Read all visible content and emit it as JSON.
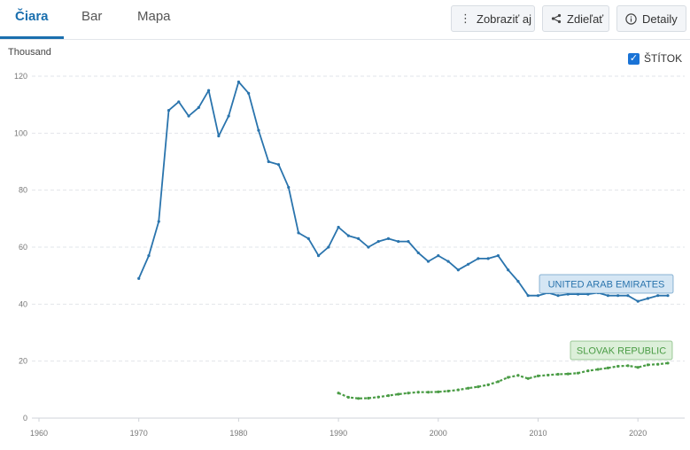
{
  "tabs": [
    {
      "label": "Čiara",
      "active": true
    },
    {
      "label": "Bar",
      "active": false
    },
    {
      "label": "Mapa",
      "active": false
    }
  ],
  "toolbar": {
    "show_label": "Zobraziť aj",
    "share_label": "Zdieľať",
    "details_label": "Detaily",
    "show_icon": "vertical-dots-icon",
    "share_icon": "share-icon",
    "details_icon": "info-circle-icon"
  },
  "checkbox": {
    "label": "ŠTÍTOK",
    "checked": true
  },
  "chart_data": {
    "type": "line",
    "ylabel": "Thousand",
    "xlim": [
      1960,
      2023
    ],
    "ylim": [
      0,
      120
    ],
    "x_ticks": [
      1960,
      1970,
      1980,
      1990,
      2000,
      2010,
      2020
    ],
    "y_ticks": [
      0,
      20,
      40,
      60,
      80,
      100,
      120
    ],
    "grid": "horizontal dashed",
    "series": [
      {
        "name": "UNITED ARAB EMIRATES",
        "color": "#2a74ad",
        "label_bg": "#d5e6f4",
        "x": [
          1970,
          1971,
          1972,
          1973,
          1974,
          1975,
          1976,
          1977,
          1978,
          1979,
          1980,
          1981,
          1982,
          1983,
          1984,
          1985,
          1986,
          1987,
          1988,
          1989,
          1990,
          1991,
          1992,
          1993,
          1994,
          1995,
          1996,
          1997,
          1998,
          1999,
          2000,
          2001,
          2002,
          2003,
          2004,
          2005,
          2006,
          2007,
          2008,
          2009,
          2010,
          2011,
          2012,
          2013,
          2014,
          2015,
          2016,
          2017,
          2018,
          2019,
          2020,
          2021,
          2022,
          2023
        ],
        "values": [
          49,
          57,
          69,
          108,
          111,
          106,
          109,
          115,
          99,
          106,
          118,
          114,
          101,
          90,
          89,
          81,
          65,
          63,
          57,
          60,
          67,
          64,
          63,
          60,
          62,
          63,
          62,
          62,
          58,
          55,
          57,
          55,
          52,
          54,
          56,
          56,
          57,
          52,
          48,
          43,
          43,
          44,
          43,
          43.5,
          43.5,
          43.5,
          44,
          43,
          43,
          43,
          41,
          42,
          43,
          43
        ]
      },
      {
        "name": "SLOVAK REPUBLIC",
        "color": "#4a9c45",
        "label_bg": "#dcefd9",
        "x": [
          1990,
          1991,
          1992,
          1993,
          1994,
          1995,
          1996,
          1997,
          1998,
          1999,
          2000,
          2001,
          2002,
          2003,
          2004,
          2005,
          2006,
          2007,
          2008,
          2009,
          2010,
          2011,
          2012,
          2013,
          2014,
          2015,
          2016,
          2017,
          2018,
          2019,
          2020,
          2021,
          2022,
          2023
        ],
        "values": [
          8.8,
          7.3,
          6.9,
          7,
          7.4,
          7.9,
          8.4,
          8.8,
          9.1,
          9.1,
          9.2,
          9.5,
          9.9,
          10.5,
          11,
          11.7,
          12.8,
          14.3,
          15,
          13.9,
          14.8,
          15.1,
          15.4,
          15.5,
          15.8,
          16.6,
          17.1,
          17.6,
          18.2,
          18.4,
          17.8,
          18.7,
          18.9,
          19.3
        ]
      }
    ]
  }
}
